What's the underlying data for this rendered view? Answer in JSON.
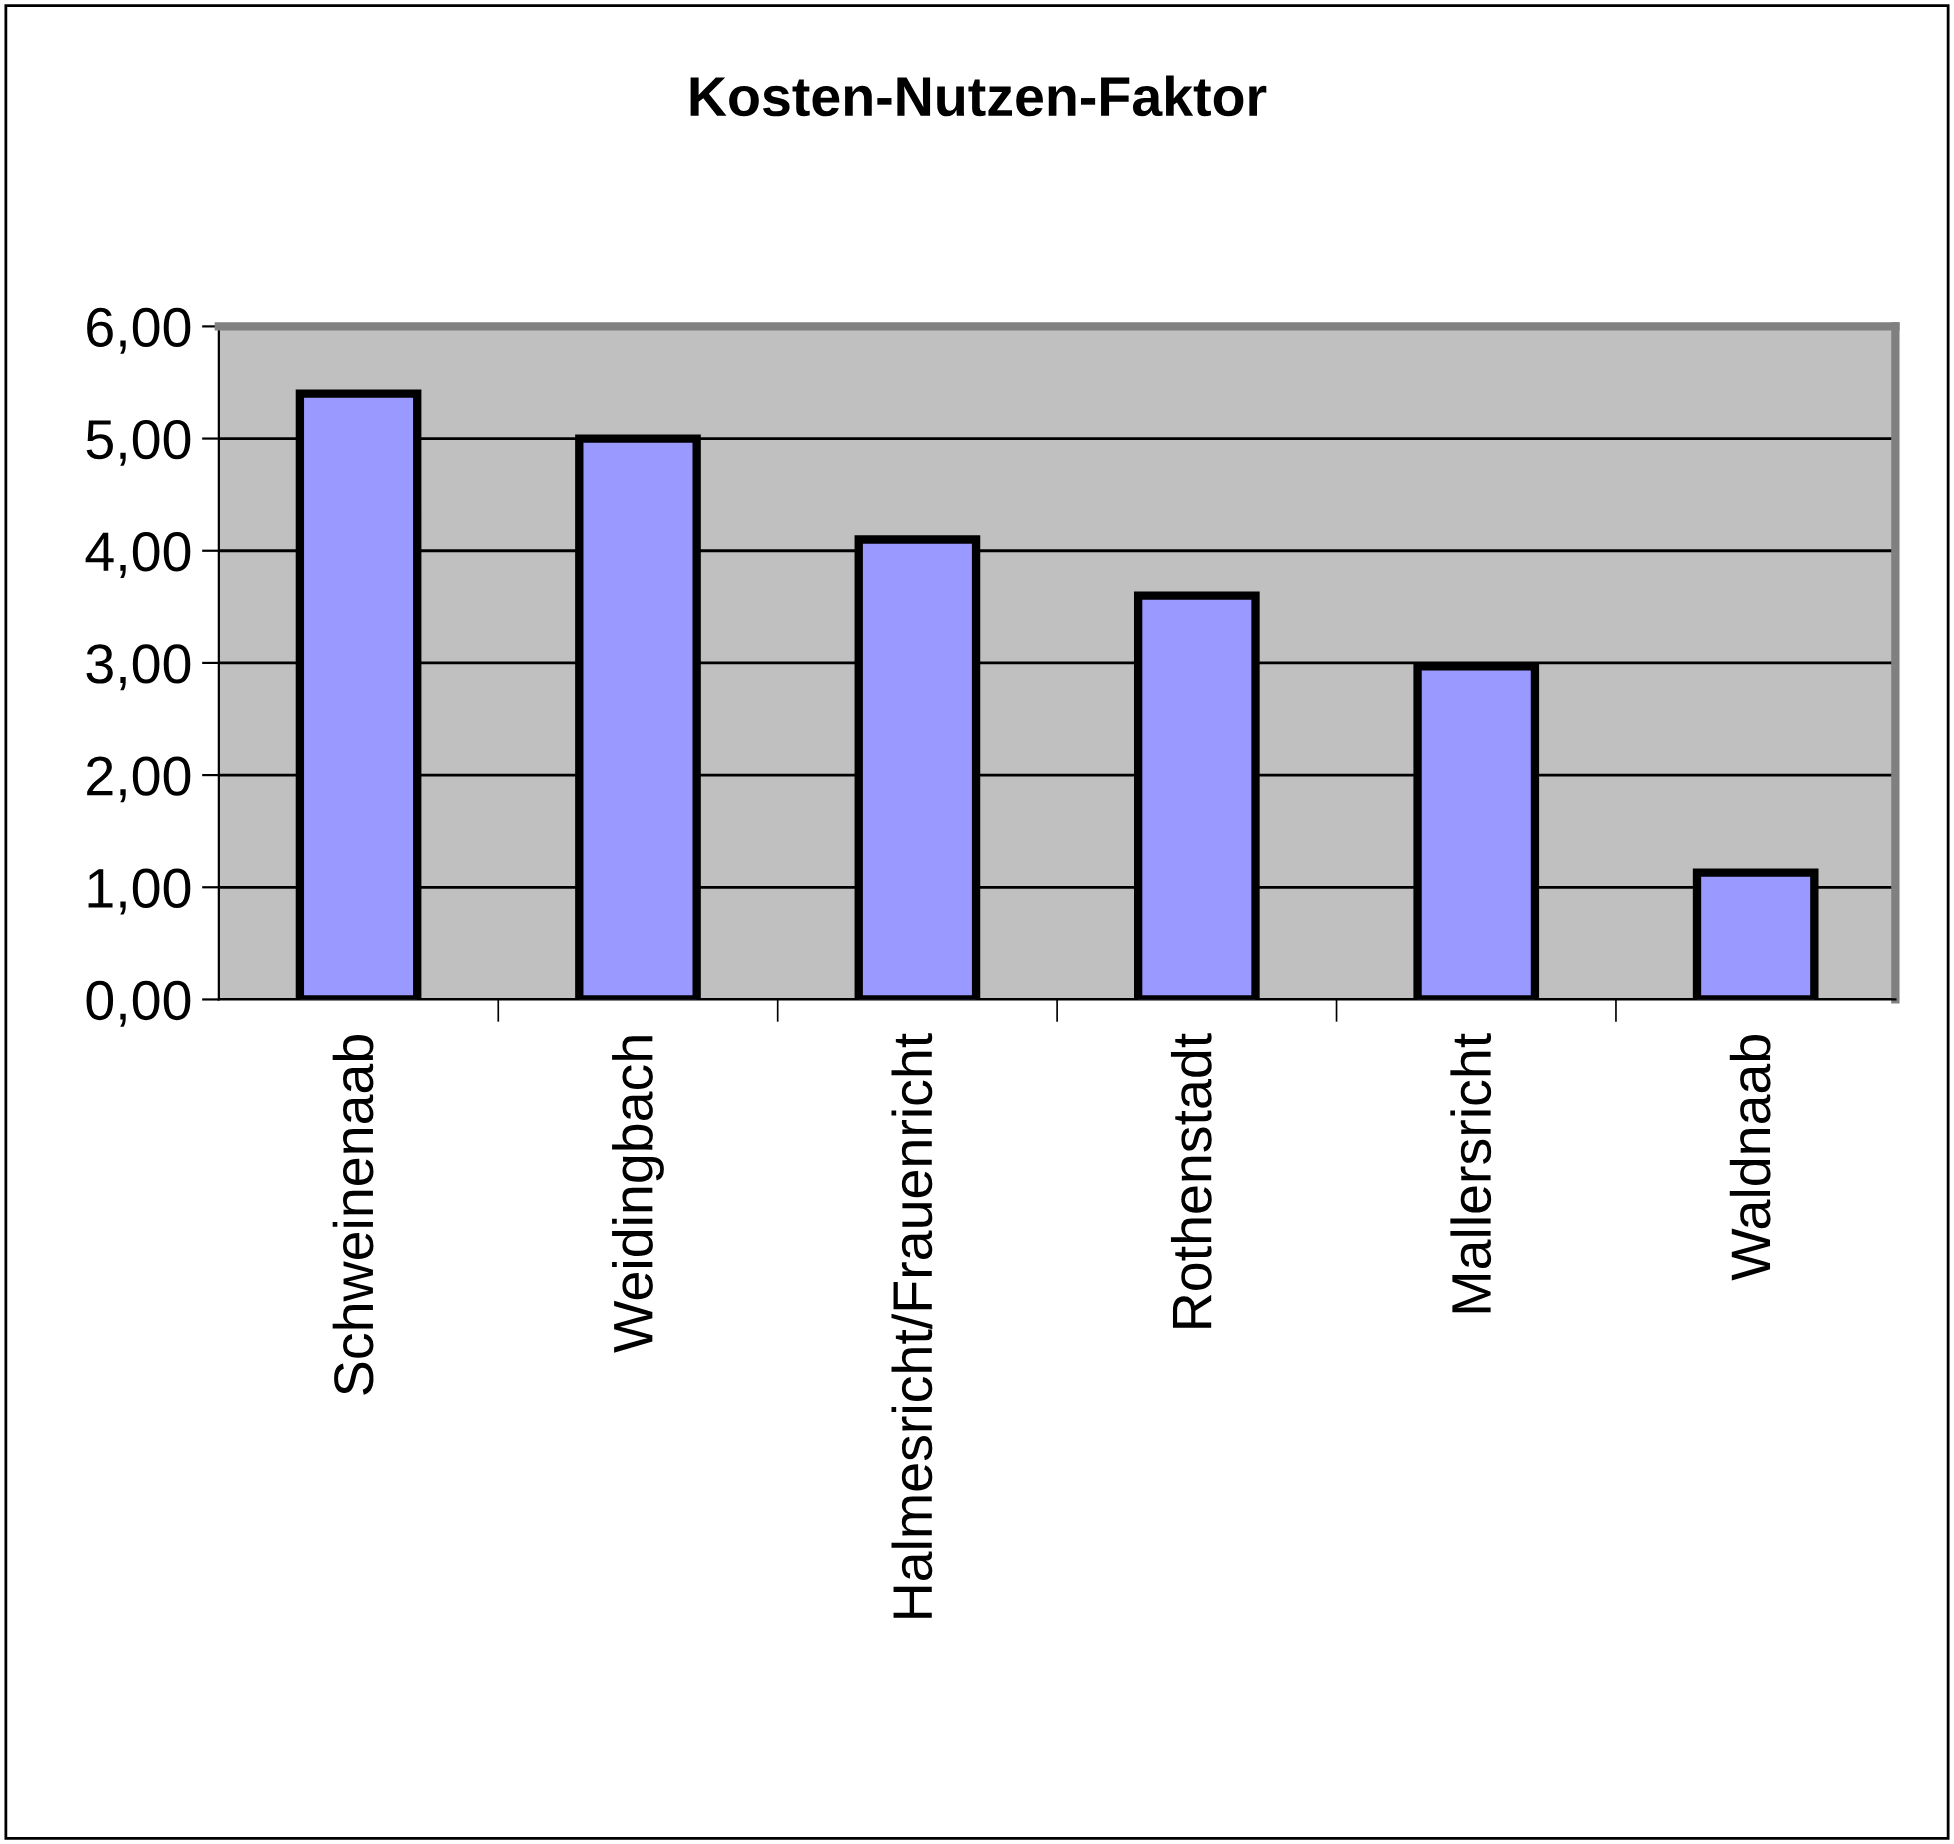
{
  "chart_data": {
    "type": "bar",
    "title": "Kosten-Nutzen-Faktor",
    "categories": [
      "Schweinenaab",
      "Weidingbach",
      "Halmesricht/Frauenricht",
      "Rothenstadt",
      "Mallersricht",
      "Waldnaab"
    ],
    "values": [
      5.4,
      5.0,
      4.1,
      3.6,
      2.97,
      1.13
    ],
    "color": "#9999ff",
    "ylim": [
      0,
      6
    ],
    "yticks": [
      {
        "value": 0,
        "label": "0,00"
      },
      {
        "value": 1,
        "label": "1,00"
      },
      {
        "value": 2,
        "label": "2,00"
      },
      {
        "value": 3,
        "label": "3,00"
      },
      {
        "value": 4,
        "label": "4,00"
      },
      {
        "value": 5,
        "label": "5,00"
      },
      {
        "value": 6,
        "label": "6,00"
      }
    ],
    "grid": "y"
  }
}
